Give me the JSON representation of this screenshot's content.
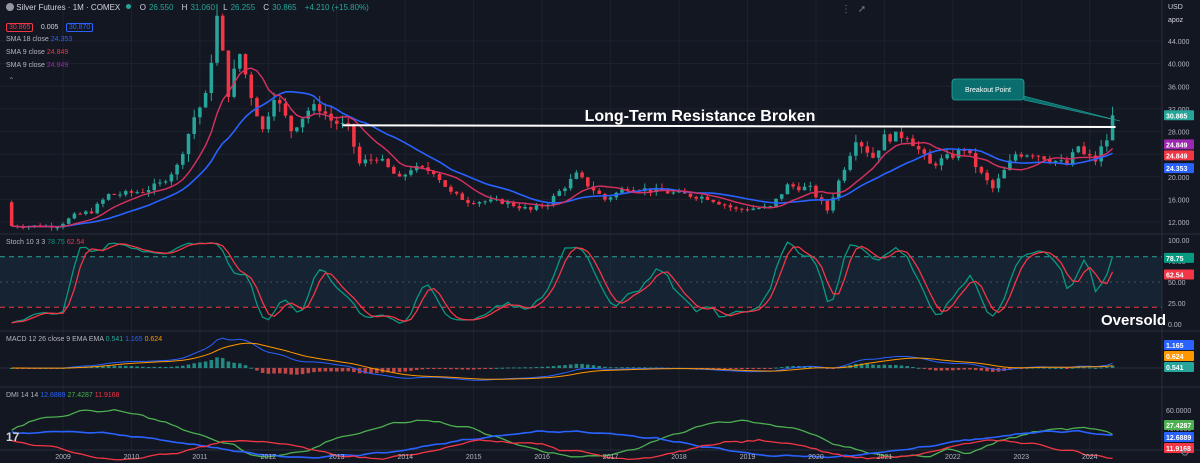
{
  "header": {
    "symbol": "Silver Futures · 1M · COMEX",
    "ohlc": {
      "o_label": "O",
      "o": "26.550",
      "h_label": "H",
      "h": "31.060",
      "l_label": "L",
      "l": "26.255",
      "c_label": "C",
      "c": "30.865",
      "chg": "+4.210 (+15.80%)"
    },
    "bid": "30.865",
    "spread": "0.005",
    "ask": "30.870",
    "currency": "USD",
    "scale_mode": "apoz"
  },
  "indicators": {
    "sma1": {
      "name": "SMA 18 close",
      "value": "24.353",
      "color": "#2962ff"
    },
    "sma2": {
      "name": "SMA 9 close",
      "value": "24.849",
      "color": "#f23645"
    },
    "sma3": {
      "name": "SMA 9 close",
      "value": "24.849",
      "color": "#9c27b0"
    },
    "stoch": {
      "name": "Stoch 10 3 3",
      "k": "78.75",
      "d": "62.54"
    },
    "macd": {
      "name": "MACD 12 26 close 9 EMA EMA",
      "hist": "0.541",
      "macd": "1.165",
      "signal": "0.624"
    },
    "dmi": {
      "name": "DMI 14 14",
      "plus": "12.6889",
      "minus": "27.4287",
      "adx": "11.9168"
    }
  },
  "annotations": {
    "resistance": "Long-Term Resistance Broken",
    "breakout": "Breakout Point",
    "oversold": "Oversold"
  },
  "colors": {
    "bull": "#26a69a",
    "bear": "#f23645",
    "bg": "#131722",
    "grid": "#1e222d",
    "text": "#b2b5be",
    "orange": "#ff9800",
    "green": "#4caf50",
    "blue": "#2962ff"
  },
  "chart_data": {
    "type": "candlestick",
    "title": "Silver Futures · 1M · COMEX",
    "x_ticks": [
      "2009",
      "2010",
      "2011",
      "2012",
      "2013",
      "2014",
      "2015",
      "2016",
      "2017",
      "2018",
      "2019",
      "2020",
      "2021",
      "2022",
      "2023",
      "2024"
    ],
    "y_ticks": [
      "44.000",
      "40.000",
      "36.000",
      "32.000",
      "28.000",
      "24.000",
      "20.000",
      "16.000",
      "12.000"
    ],
    "stoch_ticks": [
      "100.00",
      "75.00",
      "50.00",
      "25.00",
      "0.00"
    ],
    "dmi_ticks": [
      "60.0000",
      "40.0000",
      "20.0000"
    ],
    "price_anchors": [
      [
        "2008-12",
        11.3
      ],
      [
        "2009-03",
        13.1
      ],
      [
        "2009-06",
        13.9
      ],
      [
        "2009-09",
        16.8
      ],
      [
        "2009-12",
        17.0
      ],
      [
        "2010-03",
        17.5
      ],
      [
        "2010-06",
        18.7
      ],
      [
        "2010-09",
        21.8
      ],
      [
        "2010-12",
        30.6
      ],
      [
        "2011-02",
        34.0
      ],
      [
        "2011-04",
        48.0
      ],
      [
        "2011-06",
        35.0
      ],
      [
        "2011-08",
        41.7
      ],
      [
        "2011-10",
        34.5
      ],
      [
        "2011-12",
        28.2
      ],
      [
        "2012-02",
        34.6
      ],
      [
        "2012-05",
        28.3
      ],
      [
        "2012-08",
        31.8
      ],
      [
        "2012-10",
        32.3
      ],
      [
        "2012-12",
        30.0
      ],
      [
        "2013-03",
        28.5
      ],
      [
        "2013-05",
        22.3
      ],
      [
        "2013-08",
        23.5
      ],
      [
        "2013-12",
        19.5
      ],
      [
        "2014-02",
        21.5
      ],
      [
        "2014-06",
        21.0
      ],
      [
        "2014-09",
        17.1
      ],
      [
        "2014-12",
        15.7
      ],
      [
        "2015-06",
        15.6
      ],
      [
        "2015-11",
        14.1
      ],
      [
        "2016-02",
        15.4
      ],
      [
        "2016-07",
        20.3
      ],
      [
        "2016-12",
        16.0
      ],
      [
        "2017-04",
        18.2
      ],
      [
        "2017-12",
        17.1
      ],
      [
        "2018-06",
        16.3
      ],
      [
        "2018-11",
        14.2
      ],
      [
        "2019-05",
        14.6
      ],
      [
        "2019-08",
        18.4
      ],
      [
        "2019-12",
        17.9
      ],
      [
        "2020-03",
        14.1
      ],
      [
        "2020-07",
        24.3
      ],
      [
        "2020-08",
        26.9
      ],
      [
        "2020-11",
        23.5
      ],
      [
        "2021-01",
        26.9
      ],
      [
        "2021-05",
        27.4
      ],
      [
        "2021-09",
        22.1
      ],
      [
        "2021-12",
        23.3
      ],
      [
        "2022-02",
        24.3
      ],
      [
        "2022-03",
        25.1
      ],
      [
        "2022-06",
        20.4
      ],
      [
        "2022-08",
        17.9
      ],
      [
        "2022-12",
        24.0
      ],
      [
        "2023-03",
        24.2
      ],
      [
        "2023-05",
        23.5
      ],
      [
        "2023-09",
        22.1
      ],
      [
        "2023-11",
        25.4
      ],
      [
        "2023-12",
        23.8
      ],
      [
        "2024-02",
        22.9
      ],
      [
        "2024-03",
        25.0
      ],
      [
        "2024-04",
        26.6
      ],
      [
        "2024-05",
        30.87
      ]
    ],
    "last_close": 30.865,
    "resistance_level": 28.8,
    "stoch_levels": {
      "upper": 80,
      "lower": 20
    },
    "ylim": [
      10.5,
      48.5
    ]
  }
}
